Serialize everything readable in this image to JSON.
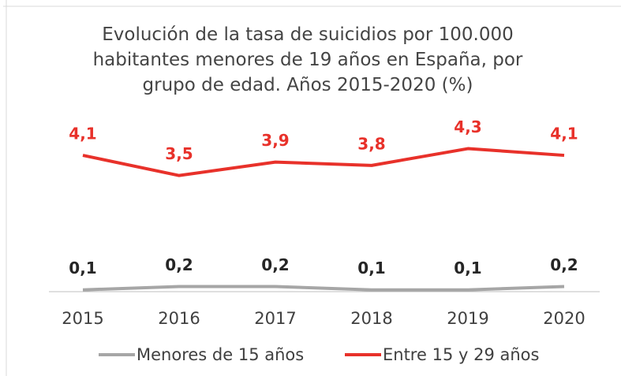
{
  "chart_data": {
    "type": "line",
    "title": "Evolución de la tasa de suicidios por 100.000 habitantes menores de 19 años en España, por grupo de edad. Años 2015-2020 (%)",
    "categories": [
      "2015",
      "2016",
      "2017",
      "2018",
      "2019",
      "2020"
    ],
    "series": [
      {
        "name": "Menores de 15 años",
        "color": "#a6a6a6",
        "values": [
          0.1,
          0.2,
          0.2,
          0.1,
          0.1,
          0.2
        ],
        "value_labels": [
          "0,1",
          "0,2",
          "0,2",
          "0,1",
          "0,1",
          "0,2"
        ],
        "label_color": "#262626"
      },
      {
        "name": "Entre 15 y 29 años",
        "color": "#e8312a",
        "values": [
          4.1,
          3.5,
          3.9,
          3.8,
          4.3,
          4.1
        ],
        "value_labels": [
          "4,1",
          "3,5",
          "3,9",
          "3,8",
          "4,3",
          "4,1"
        ],
        "label_color": "#e8312a"
      }
    ],
    "ylim": [
      0,
      4.5
    ]
  }
}
